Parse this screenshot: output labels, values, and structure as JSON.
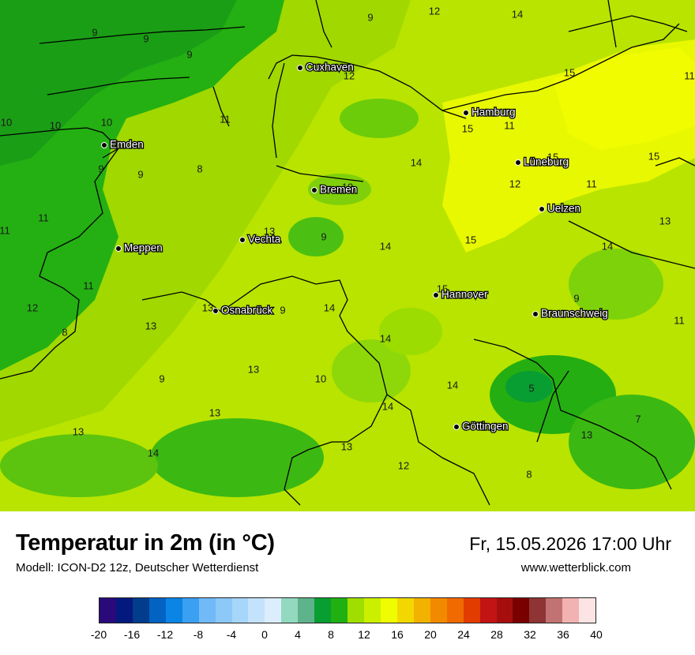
{
  "title": "Temperatur in 2m (in °C)",
  "model": "Modell: ICON-D2 12z, Deutscher Wetterdienst",
  "datetime": "Fr, 15.05.2026 17:00 Uhr",
  "website": "www.wetterblick.com",
  "cities": [
    {
      "name": "Cuxhaven"
    },
    {
      "name": "Hamburg"
    },
    {
      "name": "Emden"
    },
    {
      "name": "Lüneburg"
    },
    {
      "name": "Bremen"
    },
    {
      "name": "Uelzen"
    },
    {
      "name": "Vechta"
    },
    {
      "name": "Meppen"
    },
    {
      "name": "Hannover"
    },
    {
      "name": "Osnabrück"
    },
    {
      "name": "Braunschweig"
    },
    {
      "name": "Göttingen"
    }
  ],
  "temperature_labels": [
    "9",
    "9",
    "9",
    "9",
    "12",
    "14",
    "12",
    "15",
    "11",
    "10",
    "10",
    "10",
    "11",
    "15",
    "11",
    "9",
    "9",
    "8",
    "14",
    "15",
    "15",
    "10",
    "12",
    "11",
    "11",
    "11",
    "13",
    "9",
    "14",
    "15",
    "13",
    "14",
    "11",
    "15",
    "12",
    "13",
    "9",
    "14",
    "9",
    "11",
    "13",
    "14",
    "13",
    "9",
    "10",
    "14",
    "5",
    "13",
    "13",
    "7",
    "13",
    "14",
    "13",
    "14",
    "12",
    "8",
    "8"
  ],
  "legend": {
    "colors": [
      "#2a0a7a",
      "#04197e",
      "#023c8c",
      "#0263c3",
      "#0a85e6",
      "#3aa0f2",
      "#72b9f7",
      "#8cc8f8",
      "#a7d6fb",
      "#c4e2fc",
      "#dcedfd",
      "#92d9bf",
      "#5eb38c",
      "#089e32",
      "#20b012",
      "#a0de00",
      "#caf000",
      "#f0fc00",
      "#f2d800",
      "#f2b200",
      "#f28a00",
      "#f06a00",
      "#e23c00",
      "#c21414",
      "#a60e0e",
      "#7a0000",
      "#8e3434",
      "#c27272",
      "#f2b2b2",
      "#fde4e4"
    ],
    "ticks": [
      "-20",
      "-16",
      "-12",
      "-8",
      "-4",
      "0",
      "4",
      "8",
      "12",
      "16",
      "20",
      "24",
      "28",
      "32",
      "36",
      "40"
    ]
  }
}
